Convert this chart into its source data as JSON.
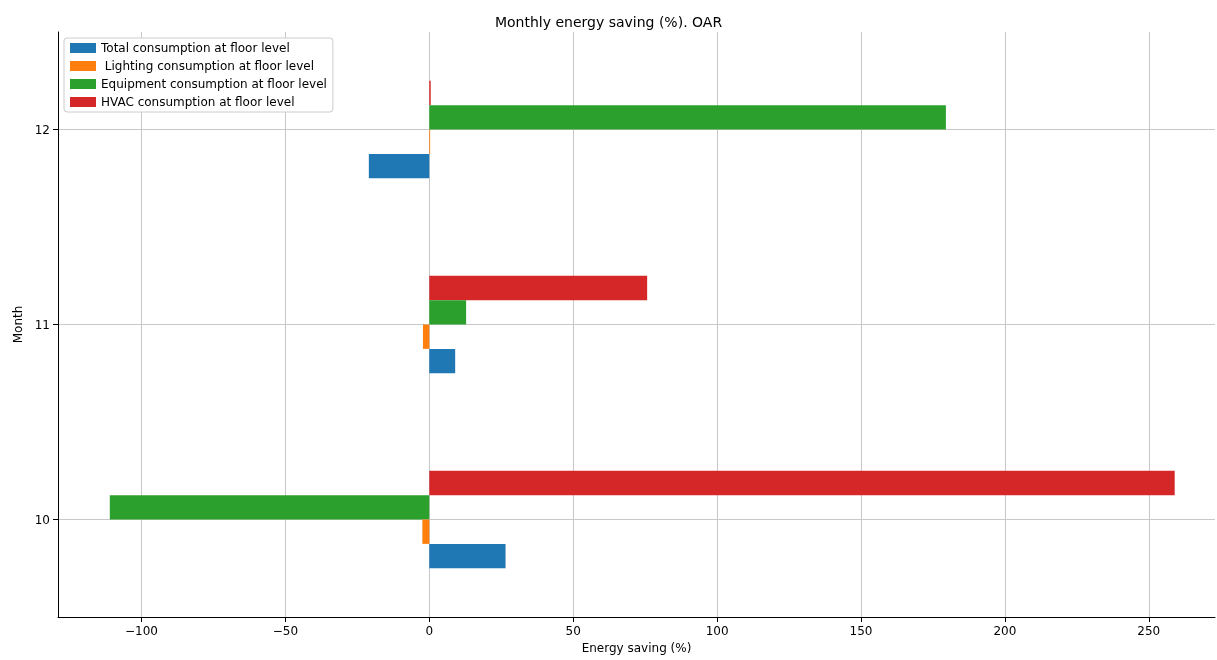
{
  "chart_data": {
    "type": "bar",
    "orientation": "horizontal",
    "title": "Monthly energy saving (%). OAR",
    "xlabel": "Energy saving (%)",
    "ylabel": "Month",
    "categories": [
      "12",
      "11",
      "10"
    ],
    "series": [
      {
        "name": "Total consumption at floor level",
        "color": "#1f77b4",
        "values": [
          -21,
          9,
          26.5
        ]
      },
      {
        "name": " Lighting consumption at floor level",
        "color": "#ff7f0e",
        "values": [
          0.3,
          -2.2,
          -2.4
        ]
      },
      {
        "name": "Equipment consumption at floor level",
        "color": "#2ca02c",
        "values": [
          179.5,
          12.8,
          -111
        ]
      },
      {
        "name": "HVAC consumption at floor level",
        "color": "#d62728",
        "values": [
          0.5,
          75.7,
          259
        ]
      }
    ],
    "xlim": [
      -129,
      273
    ],
    "xticks": [
      -100,
      -50,
      0,
      50,
      100,
      150,
      200,
      250
    ],
    "grid": true,
    "legend": "top left"
  }
}
